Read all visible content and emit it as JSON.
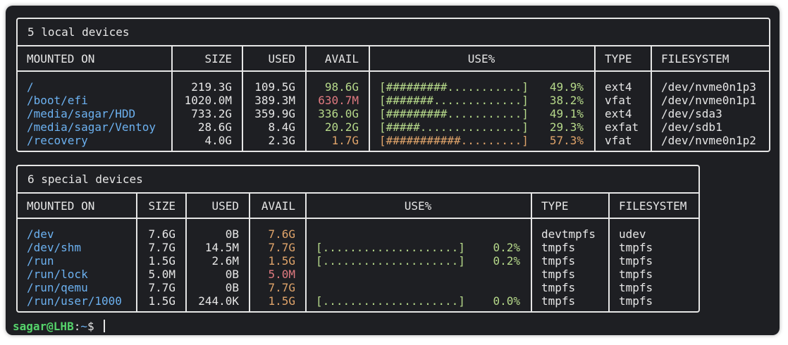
{
  "colors": {
    "background": "#1e1f23",
    "foreground": "#e6e6e6",
    "blue": "#6cb1f0",
    "green": "#b6d98a",
    "orange": "#e0a46a",
    "red": "#e07a80",
    "prompt": "#55d36b"
  },
  "local": {
    "title": "5 local devices",
    "headers": {
      "mounted": "MOUNTED ON",
      "size": "SIZE",
      "used": "USED",
      "avail": "AVAIL",
      "usep": "USE%",
      "type": "TYPE",
      "fs": "FILESYSTEM"
    },
    "rows": [
      {
        "mounted": "/",
        "size": "219.3G",
        "used": "109.5G",
        "avail": "98.6G",
        "avail_color": "green",
        "bar": "[#########...........]",
        "usep": "49.9%",
        "level": "green",
        "type": "ext4",
        "fs": "/dev/nvme0n1p3"
      },
      {
        "mounted": "/boot/efi",
        "size": "1020.0M",
        "used": "389.3M",
        "avail": "630.7M",
        "avail_color": "red",
        "bar": "[#######.............]",
        "usep": "38.2%",
        "level": "green",
        "type": "vfat",
        "fs": "/dev/nvme0n1p1"
      },
      {
        "mounted": "/media/sagar/HDD",
        "size": "733.2G",
        "used": "359.9G",
        "avail": "336.0G",
        "avail_color": "green",
        "bar": "[#########...........]",
        "usep": "49.1%",
        "level": "green",
        "type": "ext4",
        "fs": "/dev/sda3"
      },
      {
        "mounted": "/media/sagar/Ventoy",
        "size": "28.6G",
        "used": "8.4G",
        "avail": "20.2G",
        "avail_color": "green",
        "bar": "[#####...............]",
        "usep": "29.3%",
        "level": "green",
        "type": "exfat",
        "fs": "/dev/sdb1"
      },
      {
        "mounted": "/recovery",
        "size": "4.0G",
        "used": "2.3G",
        "avail": "1.7G",
        "avail_color": "orange",
        "bar": "[###########.........]",
        "usep": "57.3%",
        "level": "orange",
        "type": "vfat",
        "fs": "/dev/nvme0n1p2"
      }
    ]
  },
  "special": {
    "title": "6 special devices",
    "headers": {
      "mounted": "MOUNTED ON",
      "size": "SIZE",
      "used": "USED",
      "avail": "AVAIL",
      "usep": "USE%",
      "type": "TYPE",
      "fs": "FILESYSTEM"
    },
    "rows": [
      {
        "mounted": "/dev",
        "size": "7.6G",
        "used": "0B",
        "avail": "7.6G",
        "avail_color": "orange",
        "bar": "",
        "usep": "",
        "level": "green",
        "type": "devtmpfs",
        "fs": "udev"
      },
      {
        "mounted": "/dev/shm",
        "size": "7.7G",
        "used": "14.5M",
        "avail": "7.7G",
        "avail_color": "orange",
        "bar": "[....................]",
        "usep": "0.2%",
        "level": "green",
        "type": "tmpfs",
        "fs": "tmpfs"
      },
      {
        "mounted": "/run",
        "size": "1.5G",
        "used": "2.6M",
        "avail": "1.5G",
        "avail_color": "orange",
        "bar": "[....................]",
        "usep": "0.2%",
        "level": "green",
        "type": "tmpfs",
        "fs": "tmpfs"
      },
      {
        "mounted": "/run/lock",
        "size": "5.0M",
        "used": "0B",
        "avail": "5.0M",
        "avail_color": "red",
        "bar": "",
        "usep": "",
        "level": "green",
        "type": "tmpfs",
        "fs": "tmpfs"
      },
      {
        "mounted": "/run/qemu",
        "size": "7.7G",
        "used": "0B",
        "avail": "7.7G",
        "avail_color": "orange",
        "bar": "",
        "usep": "",
        "level": "green",
        "type": "tmpfs",
        "fs": "tmpfs"
      },
      {
        "mounted": "/run/user/1000",
        "size": "1.5G",
        "used": "244.0K",
        "avail": "1.5G",
        "avail_color": "orange",
        "bar": "[....................]",
        "usep": "0.0%",
        "level": "green",
        "type": "tmpfs",
        "fs": "tmpfs"
      }
    ]
  },
  "prompt": {
    "user": "sagar@LHB",
    "sep": ":",
    "path": "~",
    "symbol": "$ "
  }
}
